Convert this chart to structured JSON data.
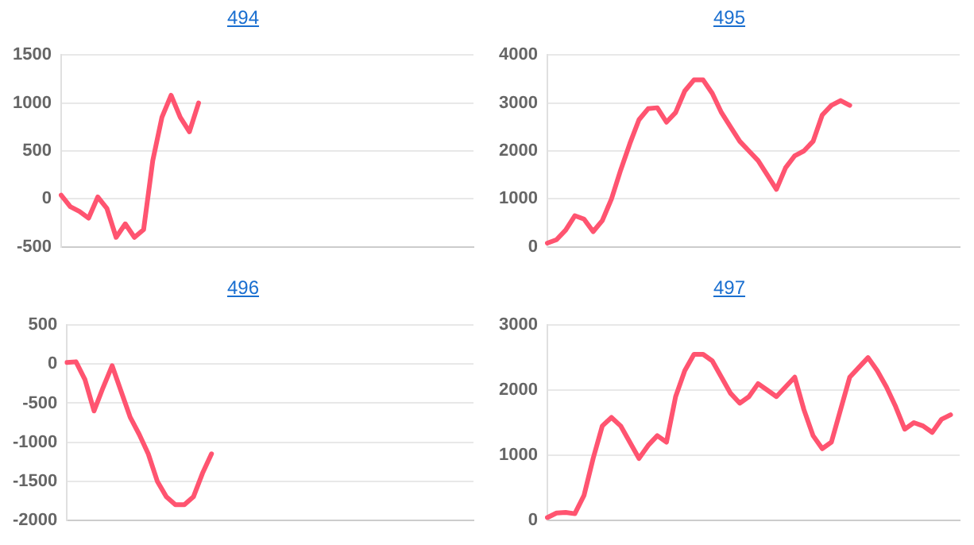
{
  "chart_data": [
    {
      "type": "line",
      "title": "494",
      "categories": [
        null,
        null,
        null,
        null,
        null,
        null,
        null,
        null,
        null,
        null,
        null,
        null,
        null,
        null,
        null,
        null,
        null,
        null,
        null,
        null,
        null,
        null,
        null,
        null,
        null,
        null,
        null,
        null,
        null,
        null,
        null,
        null,
        null,
        null,
        null,
        null,
        null,
        null,
        null,
        null,
        null,
        null,
        null,
        null,
        null,
        null
      ],
      "color": "#ff5470",
      "values": [
        40,
        -80,
        -130,
        -200,
        20,
        -100,
        -400,
        -260,
        -400,
        -320,
        400,
        850,
        1080,
        850,
        700,
        1000,
        null,
        null,
        null,
        null,
        null,
        null,
        null,
        null,
        null,
        null,
        null,
        null,
        null,
        null,
        null,
        null,
        null,
        null,
        null,
        null,
        null,
        null,
        null,
        null,
        null,
        null,
        null,
        null,
        null,
        null
      ],
      "ylim": [
        -500,
        1500
      ],
      "yticks": [
        -500,
        0,
        500,
        1000,
        1500
      ],
      "grid": "y",
      "legend": false,
      "marker": "none",
      "tick_labels": "y"
    },
    {
      "type": "line",
      "title": "495",
      "categories": [
        null,
        null,
        null,
        null,
        null,
        null,
        null,
        null,
        null,
        null,
        null,
        null,
        null,
        null,
        null,
        null,
        null,
        null,
        null,
        null,
        null,
        null,
        null,
        null,
        null,
        null,
        null,
        null,
        null,
        null,
        null,
        null,
        null,
        null,
        null,
        null,
        null,
        null,
        null,
        null,
        null,
        null,
        null,
        null,
        null,
        null
      ],
      "color": "#ff5470",
      "values": [
        80,
        150,
        350,
        650,
        580,
        320,
        550,
        1000,
        1600,
        2150,
        2650,
        2880,
        2900,
        2600,
        2800,
        3250,
        3480,
        3480,
        3200,
        2800,
        2500,
        2200,
        2000,
        1800,
        1500,
        1200,
        1650,
        1900,
        2000,
        2200,
        2750,
        2950,
        3050,
        2950,
        null,
        null,
        null,
        null,
        null,
        null,
        null,
        null,
        null,
        null,
        null,
        null
      ],
      "ylim": [
        0,
        4000
      ],
      "yticks": [
        0,
        1000,
        2000,
        3000,
        4000
      ],
      "grid": "y",
      "legend": false,
      "marker": "none",
      "tick_labels": "y"
    },
    {
      "type": "line",
      "title": "496",
      "categories": [
        null,
        null,
        null,
        null,
        null,
        null,
        null,
        null,
        null,
        null,
        null,
        null,
        null,
        null,
        null,
        null,
        null,
        null,
        null,
        null,
        null,
        null,
        null,
        null,
        null,
        null,
        null,
        null,
        null,
        null,
        null,
        null,
        null,
        null,
        null,
        null,
        null,
        null,
        null,
        null,
        null,
        null,
        null,
        null,
        null,
        null
      ],
      "color": "#ff5470",
      "values": [
        20,
        30,
        -200,
        -600,
        -300,
        -20,
        -350,
        -680,
        -900,
        -1150,
        -1500,
        -1700,
        -1800,
        -1800,
        -1700,
        -1400,
        -1150,
        null,
        null,
        null,
        null,
        null,
        null,
        null,
        null,
        null,
        null,
        null,
        null,
        null,
        null,
        null,
        null,
        null,
        null,
        null,
        null,
        null,
        null,
        null,
        null,
        null,
        null,
        null,
        null,
        null
      ],
      "ylim": [
        -2000,
        500
      ],
      "yticks": [
        -2000,
        -1500,
        -1000,
        -500,
        0,
        500
      ],
      "grid": "y",
      "legend": false,
      "marker": "none",
      "tick_labels": "y"
    },
    {
      "type": "line",
      "title": "497",
      "categories": [
        null,
        null,
        null,
        null,
        null,
        null,
        null,
        null,
        null,
        null,
        null,
        null,
        null,
        null,
        null,
        null,
        null,
        null,
        null,
        null,
        null,
        null,
        null,
        null,
        null,
        null,
        null,
        null,
        null,
        null,
        null,
        null,
        null,
        null,
        null,
        null,
        null,
        null,
        null,
        null,
        null,
        null,
        null,
        null,
        null,
        null
      ],
      "color": "#ff5470",
      "values": [
        40,
        110,
        120,
        100,
        380,
        950,
        1450,
        1580,
        1450,
        1200,
        950,
        1150,
        1300,
        1200,
        1900,
        2300,
        2550,
        2550,
        2450,
        2200,
        1950,
        1800,
        1900,
        2100,
        2000,
        1900,
        2050,
        2200,
        1700,
        1300,
        1100,
        1200,
        1700,
        2200,
        2350,
        2500,
        2300,
        2050,
        1750,
        1400,
        1500,
        1450,
        1350,
        1550,
        1620,
        null
      ],
      "ylim": [
        0,
        3000
      ],
      "yticks": [
        0,
        1000,
        2000,
        3000
      ],
      "grid": "y",
      "legend": false,
      "marker": "none",
      "tick_labels": "y"
    }
  ]
}
